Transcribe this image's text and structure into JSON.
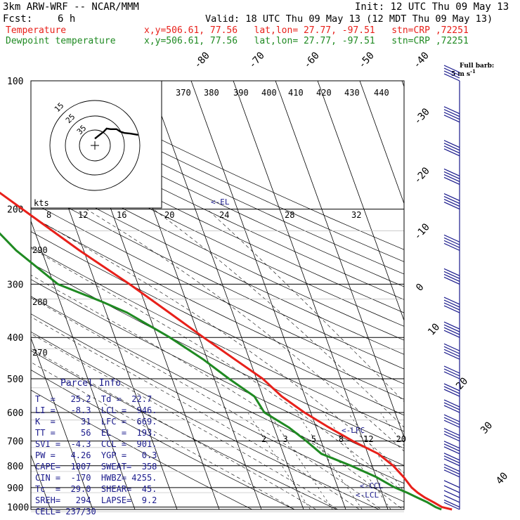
{
  "header": {
    "model": "3km ARW-WRF -- NCAR/MMM",
    "init": "Init: 12 UTC Thu 09 May 13",
    "fcst_label": "Fcst:",
    "fcst_value": "6 h",
    "valid": "Valid: 18 UTC Thu 09 May 13 (12 MDT Thu 09 May 13)",
    "temp_label": "Temperature",
    "temp_info": "x,y=506.61, 77.56   lat,lon= 27.77, -97.51   stn=CRP ,72251",
    "dew_label": "Dewpoint temperature",
    "dew_info": "x,y=506.61, 77.56   lat,lon= 27.77, -97.51   stn=CRP ,72251",
    "barb_legend_1": "Full barb:",
    "barb_legend_2": "5 m s",
    "barb_legend_sup": "-1"
  },
  "colors": {
    "temperature": "#e8201a",
    "dewpoint": "#1f8a22",
    "isobars": "#000000",
    "skewed_isotherms": "#000000",
    "mixing_ratio": "#000000",
    "parcel_text": "#1a1a8c",
    "barbs": "#1a1a8c"
  },
  "chart_data": {
    "type": "line",
    "title": "",
    "x_label": "",
    "y_label": "",
    "pressure_ticks": [
      "100",
      "200",
      "300",
      "400",
      "500",
      "600",
      "700",
      "800",
      "900",
      "1000"
    ],
    "isotherm_labels": [
      "-80",
      "-70",
      "-60",
      "-50",
      "-40",
      "-30",
      "-20",
      "-10",
      "0",
      "10",
      "20",
      "30",
      "40"
    ],
    "theta_labels_top": [
      "370",
      "380",
      "390",
      "400",
      "410",
      "420",
      "430",
      "440"
    ],
    "theta_labels_side": [
      "290",
      "280",
      "270"
    ],
    "mixing_ratio_labels": [
      "2",
      "3",
      "5",
      "8",
      "12",
      "20"
    ],
    "hodograph": {
      "units": "kts",
      "ring_labels": [
        "15",
        "25",
        "35"
      ],
      "axis_labels": [
        "8",
        "12",
        "16",
        "20",
        "24",
        "28",
        "32"
      ]
    },
    "levels": {
      "EL": "<-EL",
      "LFC": "<-LFC",
      "CCL": "<-CCL",
      "LCL": "<-LCL"
    },
    "series": [
      {
        "name": "Temperature",
        "points": [
          [
            1013,
            25.2
          ],
          [
            1000,
            23.0
          ],
          [
            975,
            21.5
          ],
          [
            950,
            19.8
          ],
          [
            925,
            18.5
          ],
          [
            900,
            17.5
          ],
          [
            850,
            16.5
          ],
          [
            800,
            15.0
          ],
          [
            750,
            12.5
          ],
          [
            700,
            7.5
          ],
          [
            650,
            3.0
          ],
          [
            600,
            -1.5
          ],
          [
            550,
            -5.5
          ],
          [
            500,
            -8.5
          ],
          [
            450,
            -13.5
          ],
          [
            400,
            -19.0
          ],
          [
            350,
            -25.0
          ],
          [
            300,
            -32.0
          ],
          [
            250,
            -41.0
          ],
          [
            200,
            -51.0
          ],
          [
            175,
            -57.0
          ],
          [
            150,
            -63.5
          ],
          [
            125,
            -62.0
          ],
          [
            100,
            -58.0
          ]
        ]
      },
      {
        "name": "Dewpoint temperature",
        "points": [
          [
            1013,
            22.7
          ],
          [
            1000,
            21.5
          ],
          [
            975,
            20.0
          ],
          [
            950,
            18.0
          ],
          [
            925,
            16.0
          ],
          [
            900,
            13.5
          ],
          [
            850,
            10.0
          ],
          [
            800,
            5.0
          ],
          [
            750,
            -1.0
          ],
          [
            700,
            -3.5
          ],
          [
            650,
            -6.5
          ],
          [
            600,
            -11.0
          ],
          [
            550,
            -12.0
          ],
          [
            500,
            -16.5
          ],
          [
            450,
            -21.0
          ],
          [
            400,
            -27.0
          ],
          [
            350,
            -35.0
          ],
          [
            330,
            -40.0
          ],
          [
            300,
            -49.0
          ],
          [
            250,
            -56.0
          ],
          [
            200,
            -62.0
          ],
          [
            150,
            -72.0
          ],
          [
            125,
            -78.0
          ],
          [
            100,
            -83.0
          ]
        ]
      }
    ],
    "wind_barb_pressures": [
      1013,
      1000,
      975,
      950,
      925,
      900,
      850,
      800,
      750,
      700,
      650,
      600,
      550,
      500,
      450,
      400,
      350,
      300,
      250,
      200,
      175,
      150,
      125,
      100
    ],
    "wind_barb_direction": "west-south-west",
    "hodograph_trace": [
      [
        0,
        3
      ],
      [
        4,
        8
      ],
      [
        9,
        14
      ],
      [
        12,
        19
      ],
      [
        16,
        18
      ],
      [
        22,
        18
      ],
      [
        26,
        14
      ],
      [
        30,
        12
      ],
      [
        36,
        11
      ],
      [
        44,
        9
      ]
    ]
  },
  "parcel_info": {
    "title": "Parcel Info",
    "rows": [
      "T  =   25.2  Td =  22.7",
      "LI =   -8.3  LCL =  946.",
      "K  =     31  LFC =  669.",
      "TT =     56  EL  =  193.",
      "SVI =  -4.3  CCL =  901.",
      "PW =   4.26  YGP =   0.3",
      "CAPE=  1807  SWEAT=  358",
      "CIN =  -170  HWBZ= 4255.",
      "Tc  =  29.0  SHEAR=  45.",
      "SREH=   294  LAPSE=  9.2",
      "CELL= 237/30"
    ]
  }
}
